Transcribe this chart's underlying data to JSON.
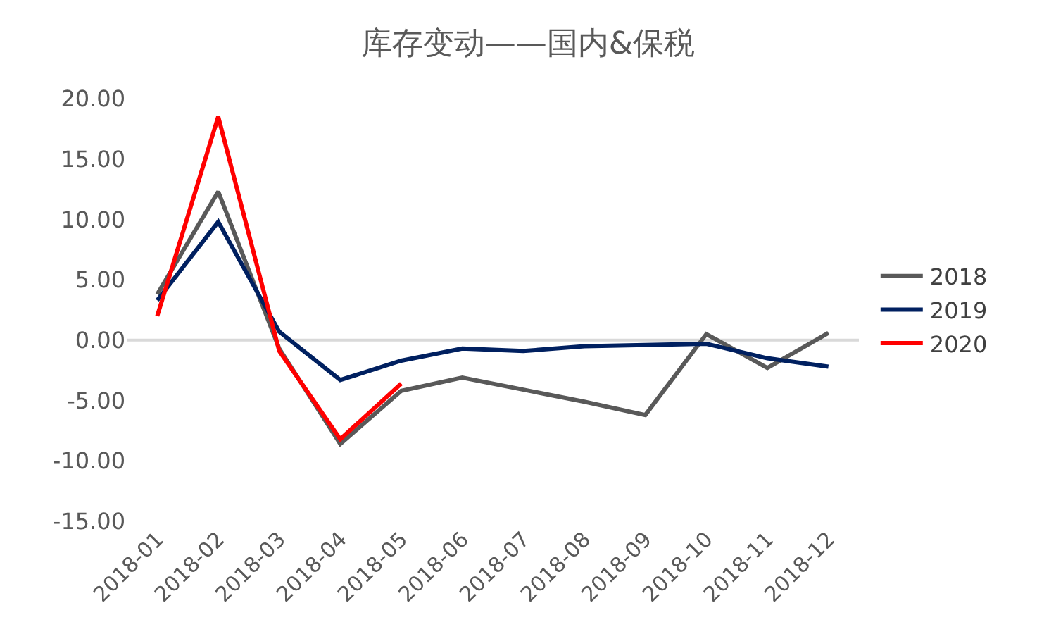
{
  "chart_data": {
    "type": "line",
    "title": "库存变动——国内&保税",
    "categories": [
      "2018-01",
      "2018-02",
      "2018-03",
      "2018-04",
      "2018-05",
      "2018-06",
      "2018-07",
      "2018-08",
      "2018-09",
      "2018-10",
      "2018-11",
      "2018-12"
    ],
    "series": [
      {
        "name": "2018",
        "color": "#595959",
        "values": [
          3.8,
          12.3,
          -0.7,
          -8.6,
          -4.2,
          -3.1,
          -4.1,
          -5.1,
          -6.2,
          0.5,
          -2.3,
          0.6
        ]
      },
      {
        "name": "2019",
        "color": "#002060",
        "values": [
          3.3,
          9.8,
          0.7,
          -3.3,
          -1.7,
          -0.7,
          -0.9,
          -0.5,
          -0.4,
          -0.3,
          -1.5,
          -2.2
        ]
      },
      {
        "name": "2020",
        "color": "#ff0000",
        "values": [
          2.0,
          18.5,
          -0.9,
          -8.2,
          -3.6,
          null,
          null,
          null,
          null,
          null,
          null,
          null
        ]
      }
    ],
    "ylim": [
      -15,
      20
    ],
    "yticks": [
      {
        "value": -15,
        "label": "-15.00"
      },
      {
        "value": -10,
        "label": "-10.00"
      },
      {
        "value": -5,
        "label": "-5.00"
      },
      {
        "value": 0,
        "label": "0.00"
      },
      {
        "value": 5,
        "label": "5.00"
      },
      {
        "value": 10,
        "label": "10.00"
      },
      {
        "value": 15,
        "label": "15.00"
      },
      {
        "value": 20,
        "label": "20.00"
      }
    ],
    "ref_lines": [
      {
        "axis": "y",
        "value": 0,
        "color": "#d9d9d9"
      }
    ],
    "grid": false,
    "legend": "right",
    "marker": "none",
    "line_style": "solid"
  }
}
